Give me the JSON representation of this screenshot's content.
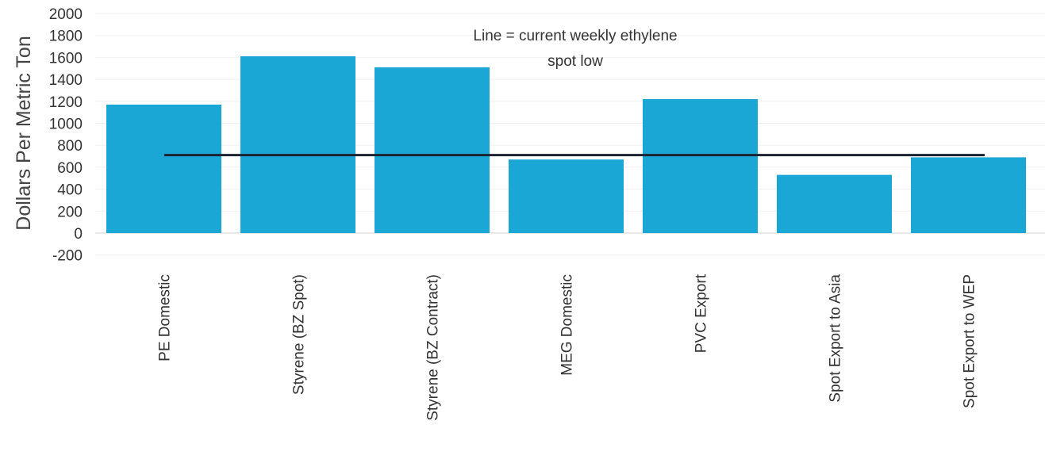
{
  "chart_data": {
    "type": "bar",
    "categories": [
      "PE Domestic",
      "Styrene (BZ Spot)",
      "Styrene (BZ Contract)",
      "MEG Domestic",
      "PVC Export",
      "Spot Export to Asia",
      "Spot Export to WEP"
    ],
    "values": [
      1170,
      1610,
      1510,
      670,
      1220,
      530,
      690
    ],
    "reference_line": {
      "value": 710
    },
    "annotation": [
      "Line = current weekly ethylene",
      "spot low"
    ],
    "ylabel": "Dollars Per Metric Ton",
    "xlabel": "",
    "ylim": [
      -200,
      2000
    ],
    "yticks": [
      2000,
      1800,
      1600,
      1400,
      1200,
      1000,
      800,
      600,
      400,
      200,
      0,
      -200
    ],
    "bar_color": "#1aa7d6",
    "line_color": "#1b2330",
    "grid": true
  }
}
